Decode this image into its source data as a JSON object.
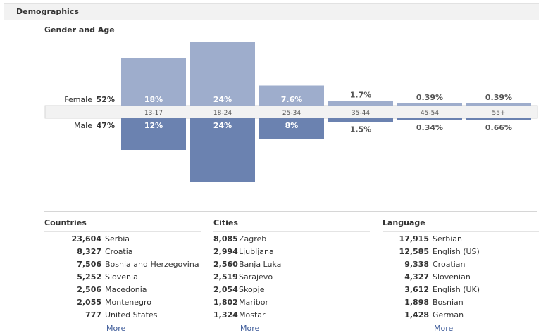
{
  "header": {
    "title": "Demographics"
  },
  "gender_age": {
    "title": "Gender and Age",
    "female_label": "Female",
    "female_pct": "52%",
    "male_label": "Male",
    "male_pct": "47%"
  },
  "chart_data": {
    "type": "bar",
    "title": "Gender and Age",
    "categories": [
      "13-17",
      "18-24",
      "25-34",
      "35-44",
      "45-54",
      "55+"
    ],
    "series": [
      {
        "name": "Female",
        "values": [
          18,
          24,
          7.6,
          1.7,
          0.39,
          0.39
        ],
        "labels": [
          "18%",
          "24%",
          "7.6%",
          "1.7%",
          "0.39%",
          "0.39%"
        ]
      },
      {
        "name": "Male",
        "values": [
          12,
          24,
          8,
          1.5,
          0.34,
          0.66
        ],
        "labels": [
          "12%",
          "24%",
          "8%",
          "1.5%",
          "0.34%",
          "0.66%"
        ]
      }
    ],
    "colors": {
      "female": "#9eadcc",
      "male": "#6b82b0",
      "axis_band": "#f2f2f2"
    }
  },
  "lists": [
    {
      "title": "Countries",
      "items": [
        {
          "count": "23,604",
          "name": "Serbia"
        },
        {
          "count": "8,327",
          "name": "Croatia"
        },
        {
          "count": "7,506",
          "name": "Bosnia and Herzegovina"
        },
        {
          "count": "5,252",
          "name": "Slovenia"
        },
        {
          "count": "2,506",
          "name": "Macedonia"
        },
        {
          "count": "2,055",
          "name": "Montenegro"
        },
        {
          "count": "777",
          "name": "United States"
        }
      ],
      "more": "More"
    },
    {
      "title": "Cities",
      "items": [
        {
          "count": "8,085",
          "name": "Zagreb"
        },
        {
          "count": "2,994",
          "name": "Ljubljana"
        },
        {
          "count": "2,560",
          "name": "Banja Luka"
        },
        {
          "count": "2,519",
          "name": "Sarajevo"
        },
        {
          "count": "2,054",
          "name": "Skopje"
        },
        {
          "count": "1,802",
          "name": "Maribor"
        },
        {
          "count": "1,324",
          "name": "Mostar"
        }
      ],
      "more": "More"
    },
    {
      "title": "Language",
      "items": [
        {
          "count": "17,915",
          "name": "Serbian"
        },
        {
          "count": "12,585",
          "name": "English (US)"
        },
        {
          "count": "9,338",
          "name": "Croatian"
        },
        {
          "count": "4,327",
          "name": "Slovenian"
        },
        {
          "count": "3,612",
          "name": "English (UK)"
        },
        {
          "count": "1,898",
          "name": "Bosnian"
        },
        {
          "count": "1,428",
          "name": "German"
        }
      ],
      "more": "More"
    }
  ]
}
